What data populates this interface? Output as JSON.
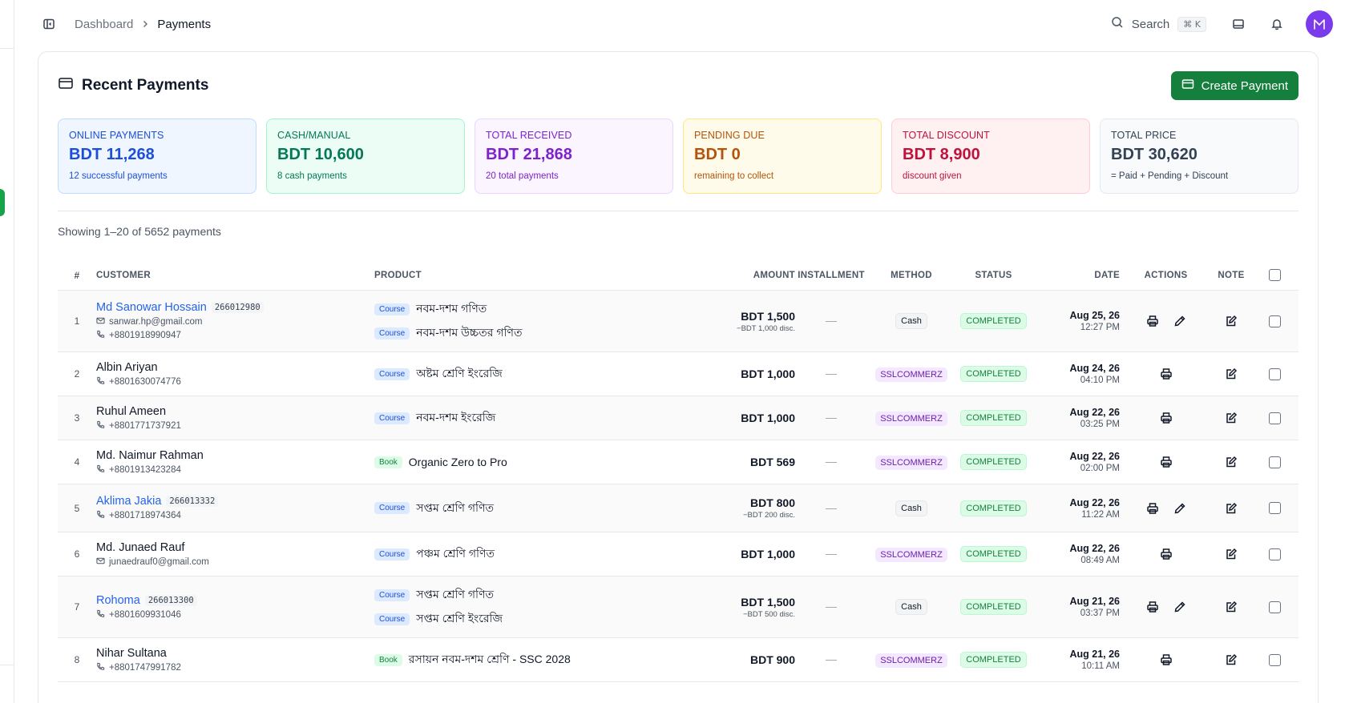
{
  "breadcrumb": {
    "parent": "Dashboard",
    "current": "Payments"
  },
  "topbar": {
    "search_label": "Search",
    "search_shortcut": "⌘ K",
    "avatar_initial": "M"
  },
  "card": {
    "title": "Recent Payments",
    "create_button": "Create Payment"
  },
  "stats": [
    {
      "label": "ONLINE PAYMENTS",
      "value": "BDT 11,268",
      "sub": "12 successful payments",
      "color": "#1d4ed8",
      "bg": "#eff6ff",
      "border": "#bfdbfe"
    },
    {
      "label": "CASH/MANUAL",
      "value": "BDT 10,600",
      "sub": "8 cash payments",
      "color": "#047857",
      "bg": "#ecfdf5",
      "border": "#a7f3d0"
    },
    {
      "label": "TOTAL RECEIVED",
      "value": "BDT 21,868",
      "sub": "20 total payments",
      "color": "#7e22ce",
      "bg": "#faf5ff",
      "border": "#e9d5ff"
    },
    {
      "label": "PENDING DUE",
      "value": "BDT 0",
      "sub": "remaining to collect",
      "color": "#b45309",
      "bg": "#fffbeb",
      "border": "#fde68a"
    },
    {
      "label": "TOTAL DISCOUNT",
      "value": "BDT 8,900",
      "sub": "discount given",
      "color": "#be123c",
      "bg": "#fff1f2",
      "border": "#fecdd3"
    },
    {
      "label": "TOTAL PRICE",
      "value": "BDT 30,620",
      "sub": "= Paid + Pending + Discount",
      "color": "#334155",
      "bg": "#f8fafc",
      "border": "#e2e8f0"
    }
  ],
  "showing": "Showing 1–20 of 5652 payments",
  "table": {
    "headers": {
      "idx": "#",
      "customer": "CUSTOMER",
      "product": "PRODUCT",
      "amount": "AMOUNT",
      "installment": "INSTALLMENT",
      "method": "METHOD",
      "status": "STATUS",
      "date": "DATE",
      "actions": "ACTIONS",
      "note": "NOTE"
    },
    "rows": [
      {
        "idx": "1",
        "name": "Md Sanowar Hossain",
        "link": true,
        "id": "266012980",
        "email": "sanwar.hp@gmail.com",
        "phone": "+8801918990947",
        "products": [
          {
            "tag": "Course",
            "title": "নবম-দশম গণিত"
          },
          {
            "tag": "Course",
            "title": "নবম-দশম উচ্চতর গণিত"
          }
        ],
        "amount": "BDT 1,500",
        "discount": "−BDT 1,000 disc.",
        "installment": "—",
        "method": "Cash",
        "status": "COMPLETED",
        "date": "Aug 25, 26",
        "time": "12:27 PM",
        "editable": true
      },
      {
        "idx": "2",
        "name": "Albin Ariyan",
        "link": false,
        "id": "",
        "email": "",
        "phone": "+8801630074776",
        "products": [
          {
            "tag": "Course",
            "title": "অষ্টম শ্রেণি ইংরেজি"
          }
        ],
        "amount": "BDT 1,000",
        "discount": "",
        "installment": "—",
        "method": "SSLCOMMERZ",
        "status": "COMPLETED",
        "date": "Aug 24, 26",
        "time": "04:10 PM",
        "editable": false
      },
      {
        "idx": "3",
        "name": "Ruhul Ameen",
        "link": false,
        "id": "",
        "email": "",
        "phone": "+8801771737921",
        "products": [
          {
            "tag": "Course",
            "title": "নবম-দশম ইংরেজি"
          }
        ],
        "amount": "BDT 1,000",
        "discount": "",
        "installment": "—",
        "method": "SSLCOMMERZ",
        "status": "COMPLETED",
        "date": "Aug 22, 26",
        "time": "03:25 PM",
        "editable": false
      },
      {
        "idx": "4",
        "name": "Md. Naimur Rahman",
        "link": false,
        "id": "",
        "email": "",
        "phone": "+8801913423284",
        "products": [
          {
            "tag": "Book",
            "title": "Organic Zero to Pro"
          }
        ],
        "amount": "BDT 569",
        "discount": "",
        "installment": "—",
        "method": "SSLCOMMERZ",
        "status": "COMPLETED",
        "date": "Aug 22, 26",
        "time": "02:00 PM",
        "editable": false
      },
      {
        "idx": "5",
        "name": "Aklima Jakia",
        "link": true,
        "id": "266013332",
        "email": "",
        "phone": "+8801718974364",
        "products": [
          {
            "tag": "Course",
            "title": "সপ্তম শ্রেণি গণিত"
          }
        ],
        "amount": "BDT 800",
        "discount": "−BDT 200 disc.",
        "installment": "—",
        "method": "Cash",
        "status": "COMPLETED",
        "date": "Aug 22, 26",
        "time": "11:22 AM",
        "editable": true
      },
      {
        "idx": "6",
        "name": "Md. Junaed Rauf",
        "link": false,
        "id": "",
        "email": "junaedrauf0@gmail.com",
        "phone": "",
        "products": [
          {
            "tag": "Course",
            "title": "পঞ্চম শ্রেণি গণিত"
          }
        ],
        "amount": "BDT 1,000",
        "discount": "",
        "installment": "—",
        "method": "SSLCOMMERZ",
        "status": "COMPLETED",
        "date": "Aug 22, 26",
        "time": "08:49 AM",
        "editable": false
      },
      {
        "idx": "7",
        "name": "Rohoma",
        "link": true,
        "id": "266013300",
        "email": "",
        "phone": "+8801609931046",
        "products": [
          {
            "tag": "Course",
            "title": "সপ্তম শ্রেণি গণিত"
          },
          {
            "tag": "Course",
            "title": "সপ্তম শ্রেণি ইংরেজি"
          }
        ],
        "amount": "BDT 1,500",
        "discount": "−BDT 500 disc.",
        "installment": "—",
        "method": "Cash",
        "status": "COMPLETED",
        "date": "Aug 21, 26",
        "time": "03:37 PM",
        "editable": true
      },
      {
        "idx": "8",
        "name": "Nihar Sultana",
        "link": false,
        "id": "",
        "email": "",
        "phone": "+8801747991782",
        "products": [
          {
            "tag": "Book",
            "title": "রসায়ন নবম-দশম শ্রেণি - SSC 2028"
          }
        ],
        "amount": "BDT 900",
        "discount": "",
        "installment": "—",
        "method": "SSLCOMMERZ",
        "status": "COMPLETED",
        "date": "Aug 21, 26",
        "time": "10:11 AM",
        "editable": false
      }
    ]
  }
}
